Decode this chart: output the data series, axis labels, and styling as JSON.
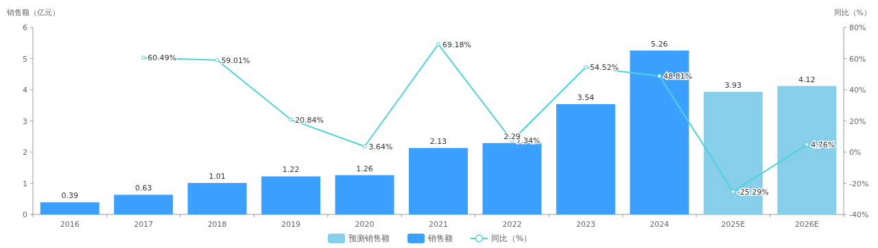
{
  "chart_data": {
    "type": "bar",
    "categories": [
      "2016",
      "2017",
      "2018",
      "2019",
      "2020",
      "2021",
      "2022",
      "2023",
      "2024",
      "2025E",
      "2026E"
    ],
    "ylabel": "销售额（亿元）",
    "y2label": "同比（%）",
    "ylim": [
      0,
      6
    ],
    "yticks": [
      0,
      1,
      2,
      3,
      4,
      5,
      6
    ],
    "y2lim": [
      -40,
      80
    ],
    "y2ticks": [
      {
        "value": -40,
        "label": "-40%"
      },
      {
        "value": -20,
        "label": "-20%"
      },
      {
        "value": 0,
        "label": "0%"
      },
      {
        "value": 20,
        "label": "20%"
      },
      {
        "value": 40,
        "label": "40%"
      },
      {
        "value": 60,
        "label": "60%"
      },
      {
        "value": 80,
        "label": "80%"
      }
    ],
    "legend": "bottom",
    "marker": "circle",
    "series": [
      {
        "name": "预测销售额",
        "color": "#87ceeb",
        "values": [
          null,
          null,
          null,
          null,
          null,
          null,
          null,
          null,
          null,
          3.93,
          4.12
        ],
        "value_labels": [
          null,
          null,
          null,
          null,
          null,
          null,
          null,
          null,
          null,
          "3.93",
          "4.12"
        ]
      },
      {
        "name": "销售额",
        "color": "#3ca0ff",
        "values": [
          0.39,
          0.63,
          1.01,
          1.22,
          1.26,
          2.13,
          2.29,
          3.54,
          5.26,
          null,
          null
        ],
        "value_labels": [
          "0.39",
          "0.63",
          "1.01",
          "1.22",
          "1.26",
          "2.13",
          "2.29",
          "3.54",
          "5.26",
          null,
          null
        ]
      },
      {
        "name": "同比（%）",
        "type": "line",
        "axis": "y2",
        "color": "#4fd1d9",
        "values": [
          null,
          60.49,
          59.01,
          20.84,
          3.64,
          69.18,
          7.34,
          54.52,
          48.81,
          -25.29,
          4.76
        ],
        "value_labels": [
          null,
          "60.49%",
          "59.01%",
          "20.84%",
          "3.64%",
          "69.18%",
          "7.34%",
          "54.52%",
          "48.81%",
          "-25.29%",
          "4.76%"
        ]
      }
    ]
  }
}
